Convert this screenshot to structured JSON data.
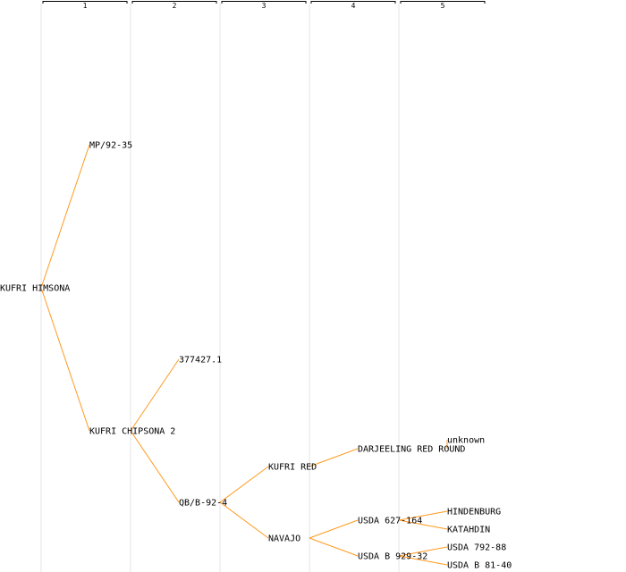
{
  "colors": {
    "edge": "#ff9a1f",
    "grid": "#e6e6e6",
    "text": "#000000"
  },
  "generations": [
    "1",
    "2",
    "3",
    "4",
    "5"
  ],
  "pedigree": {
    "root": "KUFRI HIMSONA",
    "nodes": [
      {
        "id": "n0",
        "label": "KUFRI HIMSONA",
        "gen": 0
      },
      {
        "id": "n1",
        "label": "MP/92-35",
        "gen": 1,
        "parent": "n0"
      },
      {
        "id": "n2",
        "label": "KUFRI CHIPSONA 2",
        "gen": 1,
        "parent": "n0"
      },
      {
        "id": "n3",
        "label": "377427.1",
        "gen": 2,
        "parent": "n2"
      },
      {
        "id": "n4",
        "label": "QB/B-92-4",
        "gen": 2,
        "parent": "n2"
      },
      {
        "id": "n5",
        "label": "KUFRI RED",
        "gen": 3,
        "parent": "n4"
      },
      {
        "id": "n6",
        "label": "NAVAJO",
        "gen": 3,
        "parent": "n4"
      },
      {
        "id": "n7",
        "label": "DARJEELING RED ROUND",
        "gen": 4,
        "parent": "n5"
      },
      {
        "id": "n8",
        "label": "unknown",
        "gen": 5,
        "parent": "n7"
      },
      {
        "id": "n9",
        "label": "USDA 627-164",
        "gen": 4,
        "parent": "n6"
      },
      {
        "id": "n10",
        "label": "HINDENBURG",
        "gen": 5,
        "parent": "n9"
      },
      {
        "id": "n11",
        "label": "KATAHDIN",
        "gen": 5,
        "parent": "n9"
      },
      {
        "id": "n12",
        "label": "USDA B 929-32",
        "gen": 4,
        "parent": "n6"
      },
      {
        "id": "n13",
        "label": "USDA 792-88",
        "gen": 5,
        "parent": "n12"
      },
      {
        "id": "n14",
        "label": "USDA B 81-40",
        "gen": 5,
        "parent": "n12"
      }
    ]
  }
}
